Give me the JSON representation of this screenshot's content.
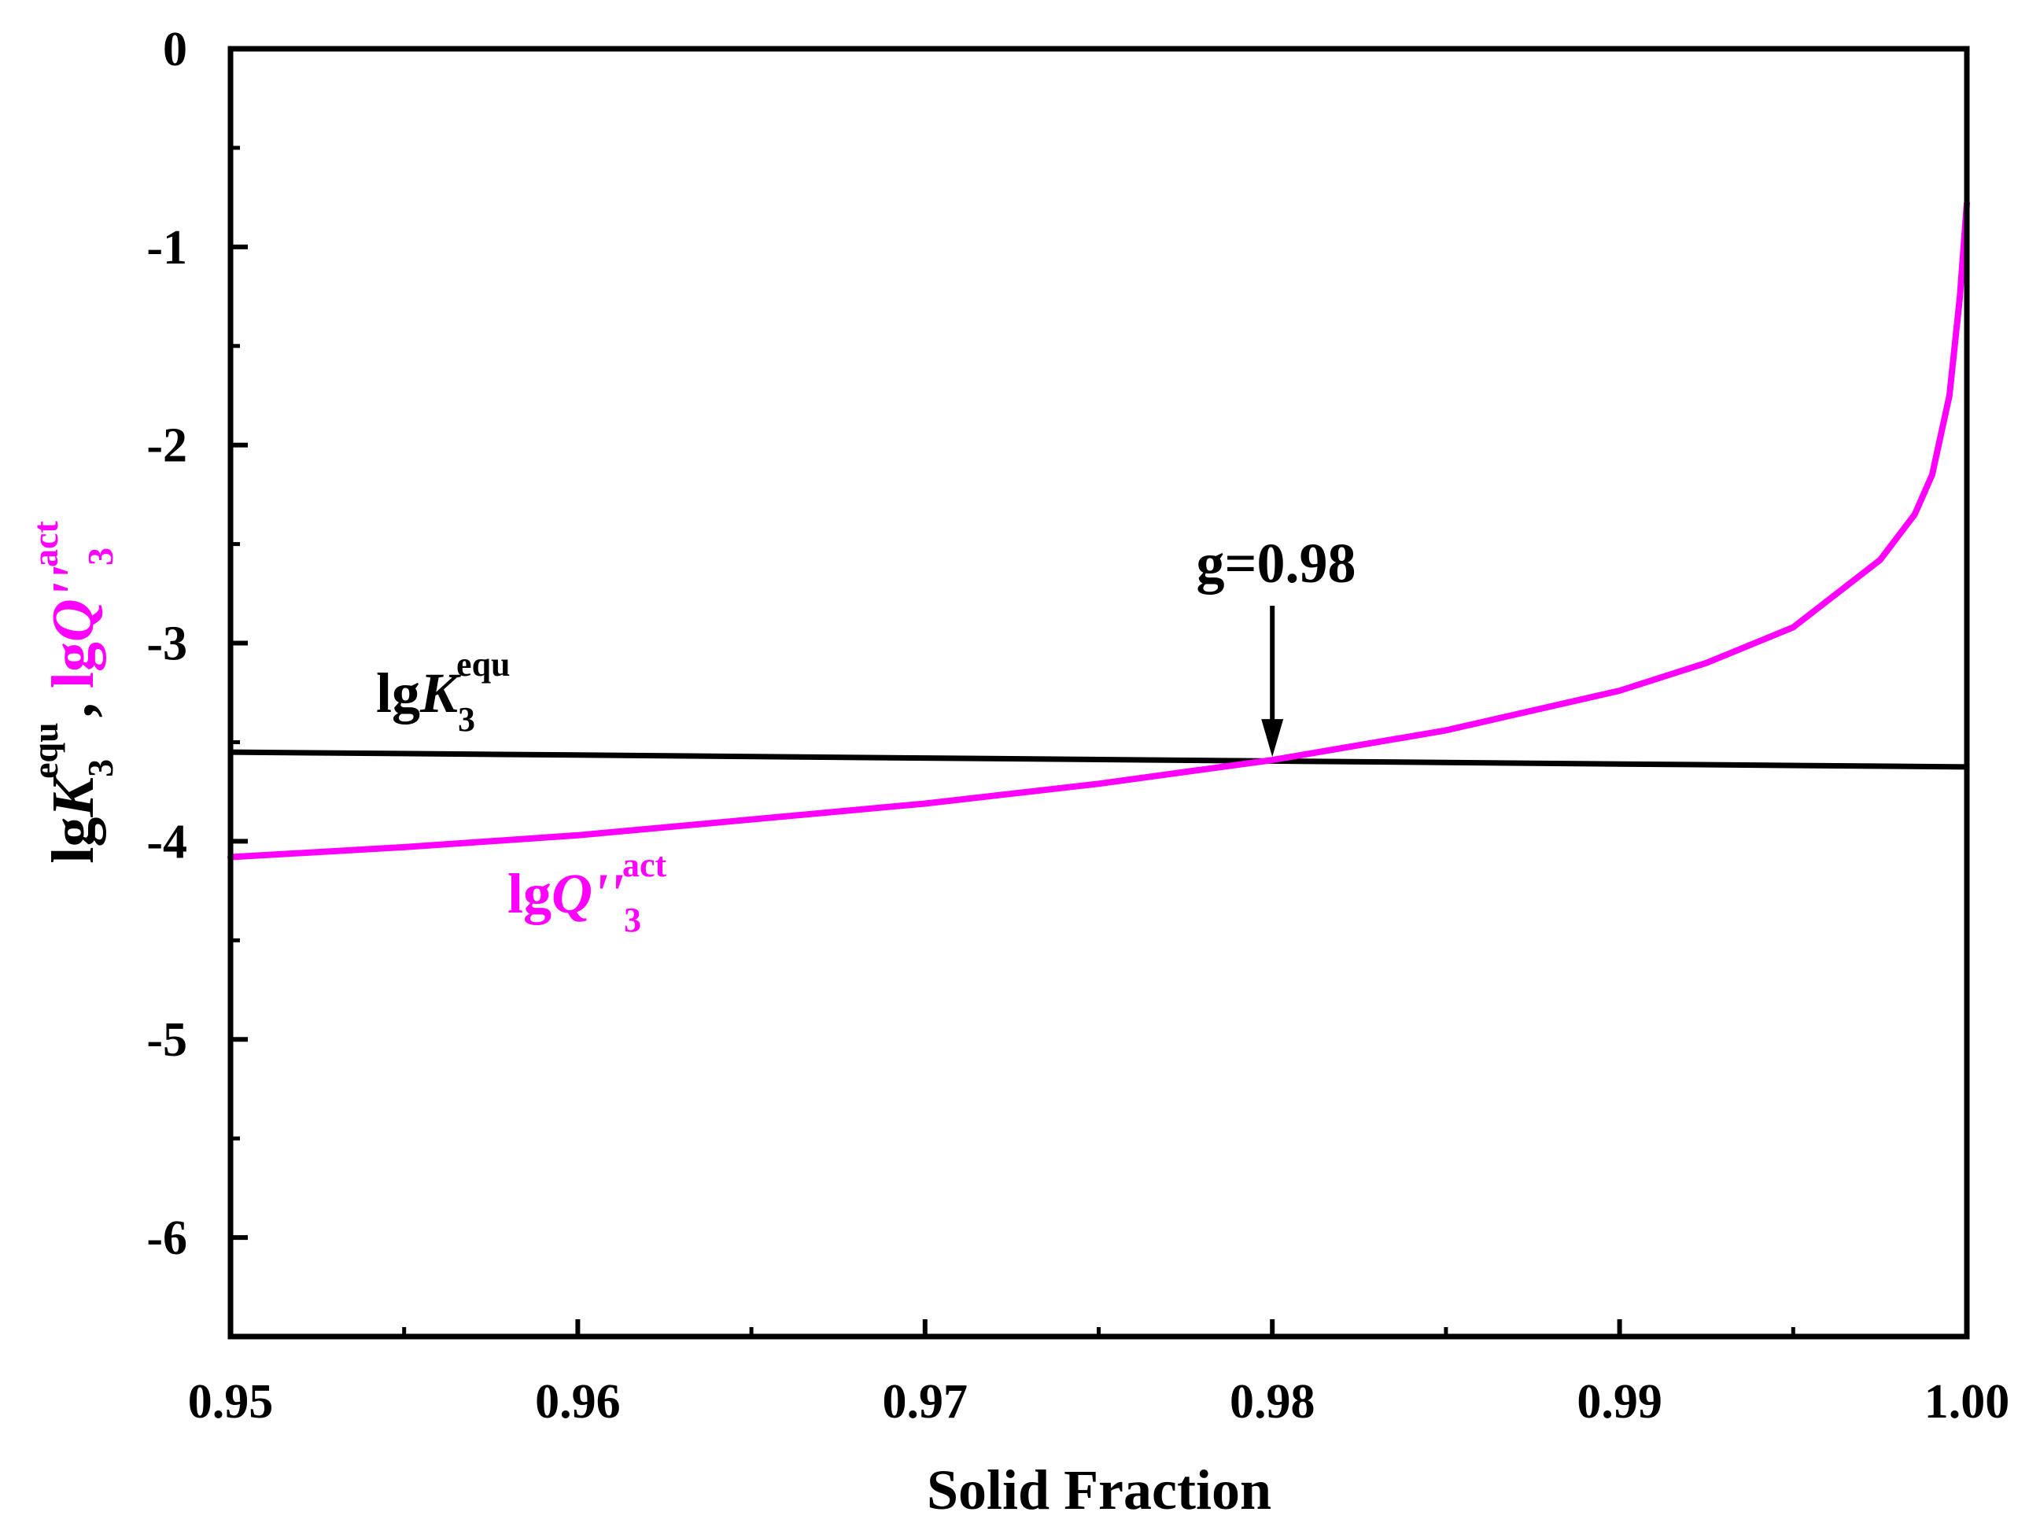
{
  "chart_data": {
    "type": "line",
    "title": "",
    "xlabel": "Solid Fraction",
    "ylabel": {
      "k_prefix": "lg",
      "k_symbol": "K",
      "k_sub": "3",
      "k_sup": "equ",
      "separator": ",",
      "q_prefix": "lg",
      "q_symbol": "Q''",
      "q_sub": "3",
      "q_sup": "act"
    },
    "xlim": [
      0.95,
      1.0
    ],
    "ylim": [
      -6.5,
      0
    ],
    "x_ticks": [
      "0.95",
      "0.96",
      "0.97",
      "0.98",
      "0.99",
      "1.00"
    ],
    "x_tick_values": [
      0.95,
      0.96,
      0.97,
      0.98,
      0.99,
      1.0
    ],
    "y_ticks": [
      "0",
      "-1",
      "-2",
      "-3",
      "-4",
      "-5",
      "-6"
    ],
    "y_tick_values": [
      0,
      -1,
      -2,
      -3,
      -4,
      -5,
      -6
    ],
    "colors": {
      "axis": "#000000",
      "k_line": "#000000",
      "q_line": "#ff00ff"
    },
    "series": [
      {
        "name": "lgK3equ",
        "color": "#000000",
        "x": [
          0.95,
          0.96,
          0.97,
          0.98,
          0.99,
          1.0
        ],
        "y": [
          -3.55,
          -3.565,
          -3.58,
          -3.595,
          -3.61,
          -3.625
        ]
      },
      {
        "name": "lgQ''3act",
        "color": "#ff00ff",
        "x": [
          0.95,
          0.955,
          0.96,
          0.965,
          0.97,
          0.975,
          0.98,
          0.985,
          0.99,
          0.9925,
          0.995,
          0.9975,
          0.9985,
          0.999,
          0.9995,
          0.9998,
          1.0
        ],
        "y": [
          -4.08,
          -4.03,
          -3.97,
          -3.89,
          -3.81,
          -3.71,
          -3.59,
          -3.44,
          -3.24,
          -3.1,
          -2.92,
          -2.58,
          -2.35,
          -2.15,
          -1.75,
          -1.25,
          -0.78
        ]
      }
    ],
    "annotations": {
      "k_label": {
        "prefix": "lg",
        "symbol": "K",
        "sub": "3",
        "sup": "equ"
      },
      "q_label": {
        "prefix": "lg",
        "symbol": "Q''",
        "sub": "3",
        "sup": "act"
      },
      "arrow_label": "g=0.98",
      "arrow_x": 0.98,
      "arrow_tip_y": -3.59
    }
  }
}
